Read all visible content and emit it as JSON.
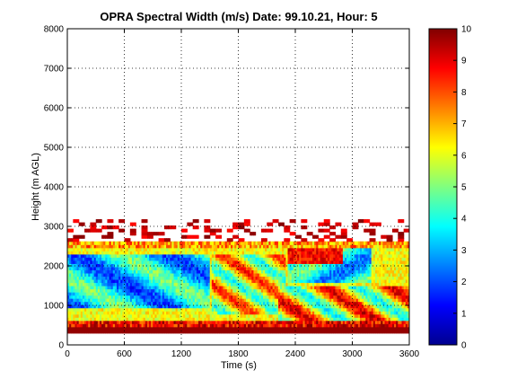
{
  "chart_data": {
    "type": "heatmap",
    "title": "OPRA Spectral Width (m/s)  Date: 99.10.21, Hour: 5",
    "xlabel": "Time (s)",
    "ylabel": "Height (m AGL)",
    "xlim": [
      0,
      3600
    ],
    "ylim": [
      0,
      8000
    ],
    "xticks": [
      0,
      600,
      1200,
      1800,
      2400,
      3000,
      3600
    ],
    "xtick_labels": [
      "0",
      "600",
      "1200",
      "1800",
      "2400",
      "3000",
      "3600"
    ],
    "yticks": [
      0,
      1000,
      2000,
      3000,
      4000,
      5000,
      6000,
      7000,
      8000
    ],
    "ytick_labels": [
      "0",
      "1000",
      "2000",
      "3000",
      "4000",
      "5000",
      "6000",
      "7000",
      "8000"
    ],
    "grid": true,
    "colormap": "jet",
    "colorbar": {
      "range": [
        0,
        10
      ],
      "ticks": [
        0,
        1,
        2,
        3,
        4,
        5,
        6,
        7,
        8,
        9,
        10
      ],
      "tick_labels": [
        "0",
        "1",
        "2",
        "3",
        "4",
        "5",
        "6",
        "7",
        "8",
        "9",
        "10"
      ]
    },
    "data_extent": {
      "time_range_s": [
        0,
        3600
      ],
      "height_range_m": [
        300,
        3100
      ]
    },
    "features": [
      {
        "height_m": [
          300,
          420
        ],
        "spectral_width_ms": 10,
        "note": "high values along the lowest range gates"
      },
      {
        "height_m": [
          1000,
          2300
        ],
        "time_s": [
          100,
          1500
        ],
        "spectral_width_ms": 3.5,
        "note": "low-width band"
      },
      {
        "height_m": [
          1500,
          2400
        ],
        "time_s": [
          2300,
          3200
        ],
        "spectral_width_ms": 3.5
      },
      {
        "height_m": [
          2400,
          2600
        ],
        "spectral_width_ms": 6.5,
        "note": "top edge of echo layer"
      },
      {
        "height_m": [
          2600,
          3100
        ],
        "time_s": [
          0,
          3600
        ],
        "spectral_width_ms": 9.5,
        "note": "scattered patches above layer top"
      }
    ]
  }
}
